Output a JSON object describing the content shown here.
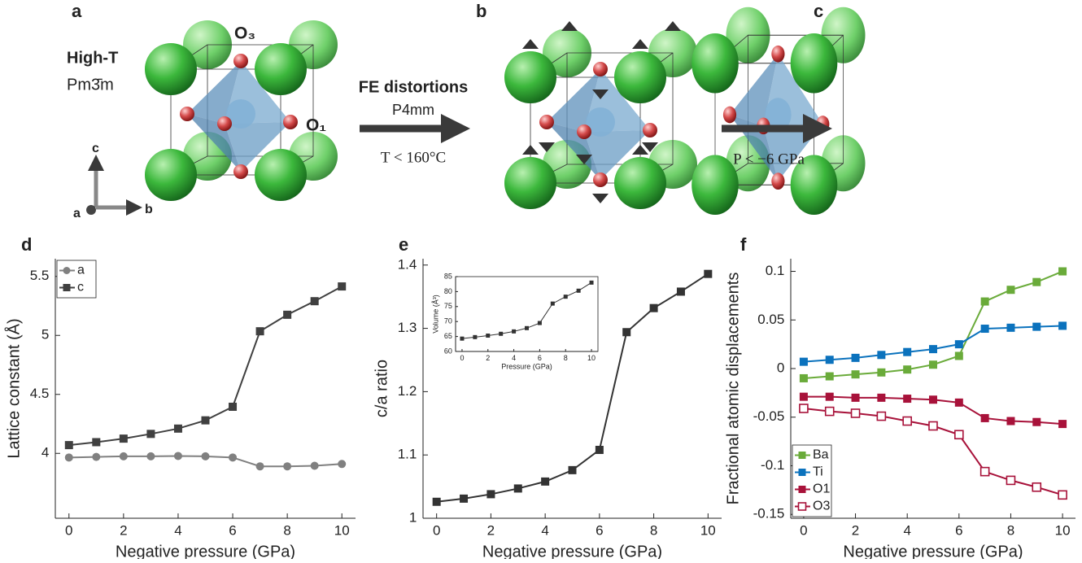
{
  "diagram": {
    "panel_a": "a",
    "panel_b": "b",
    "panel_c": "c",
    "phase_label": "High-T",
    "space_group_a": "Pm3̄m",
    "o3_label": "O₃",
    "o1_label": "O₁",
    "axis_c": "c",
    "axis_a": "a",
    "axis_b": "b",
    "arrow1_top": "FE distortions",
    "arrow1_group": "P4mm",
    "arrow1_condition": "T < 160°C",
    "arrow2_condition": "P < −6 GPa"
  },
  "chart_data": [
    {
      "type": "line",
      "label": "d",
      "xlabel": "Negative pressure (GPa)",
      "ylabel": "Lattice constant (Å)",
      "x": [
        0,
        1,
        2,
        3,
        4,
        5,
        6,
        7,
        8,
        9,
        10
      ],
      "series": [
        {
          "name": "a",
          "color": "#808080",
          "marker": "circle",
          "values": [
            3.965,
            3.97,
            3.975,
            3.975,
            3.978,
            3.975,
            3.965,
            3.89,
            3.89,
            3.895,
            3.91
          ]
        },
        {
          "name": "c",
          "color": "#404040",
          "marker": "square",
          "values": [
            4.07,
            4.095,
            4.125,
            4.165,
            4.21,
            4.28,
            4.395,
            5.035,
            5.175,
            5.29,
            5.415
          ]
        }
      ],
      "xlim": [
        -0.5,
        10.5
      ],
      "ylim": [
        3.45,
        5.65
      ],
      "xticks": [
        0,
        2,
        4,
        6,
        8,
        10
      ],
      "yticks": [
        4,
        4.5,
        5,
        5.5
      ],
      "legend": "upper-left"
    },
    {
      "type": "line",
      "label": "e",
      "xlabel": "Negative pressure (GPa)",
      "ylabel": "c/a ratio",
      "x": [
        0,
        1,
        2,
        3,
        4,
        5,
        6,
        7,
        8,
        9,
        10
      ],
      "series": [
        {
          "color": "#333333",
          "marker": "square",
          "values": [
            1.026,
            1.031,
            1.038,
            1.047,
            1.058,
            1.076,
            1.108,
            1.294,
            1.332,
            1.358,
            1.386
          ]
        }
      ],
      "xlim": [
        -0.5,
        10.5
      ],
      "ylim": [
        1.0,
        1.41
      ],
      "xticks": [
        0,
        2,
        4,
        6,
        8,
        10
      ],
      "yticks": [
        1,
        1.1,
        1.2,
        1.3,
        1.4
      ]
    },
    {
      "type": "line",
      "xlabel": "Pressure (GPa)",
      "ylabel": "Volume (Å³)",
      "x": [
        0,
        1,
        2,
        3,
        4,
        5,
        6,
        7,
        8,
        9,
        10
      ],
      "series": [
        {
          "color": "#333333",
          "marker": "square",
          "values": [
            64.3,
            64.8,
            65.3,
            65.9,
            66.7,
            67.8,
            69.5,
            76,
            78.3,
            80.3,
            83
          ]
        }
      ],
      "xlim": [
        -0.5,
        10.5
      ],
      "ylim": [
        60,
        85
      ],
      "xticks": [
        0,
        2,
        4,
        6,
        8,
        10
      ],
      "yticks": [
        60,
        65,
        70,
        75,
        80,
        85
      ]
    },
    {
      "type": "line",
      "label": "f",
      "xlabel": "Negative pressure (GPa)",
      "ylabel": "Fractional atomic displacements",
      "x": [
        0,
        1,
        2,
        3,
        4,
        5,
        6,
        7,
        8,
        9,
        10
      ],
      "series": [
        {
          "name": "Ba",
          "color": "#6aab3a",
          "marker": "square",
          "values": [
            -0.01,
            -0.008,
            -0.006,
            -0.004,
            -0.001,
            0.004,
            0.013,
            0.069,
            0.081,
            0.089,
            0.1
          ]
        },
        {
          "name": "Ti",
          "color": "#0b72bd",
          "marker": "square",
          "values": [
            0.007,
            0.009,
            0.011,
            0.014,
            0.017,
            0.02,
            0.025,
            0.041,
            0.042,
            0.043,
            0.044
          ]
        },
        {
          "name": "O1",
          "color": "#a8123a",
          "marker": "square",
          "values": [
            -0.029,
            -0.029,
            -0.03,
            -0.03,
            -0.031,
            -0.032,
            -0.035,
            -0.051,
            -0.054,
            -0.055,
            -0.057
          ]
        },
        {
          "name": "O3",
          "color": "#a8123a",
          "marker": "square-open",
          "values": [
            -0.041,
            -0.044,
            -0.046,
            -0.049,
            -0.054,
            -0.059,
            -0.068,
            -0.106,
            -0.115,
            -0.122,
            -0.13
          ]
        }
      ],
      "xlim": [
        -0.5,
        10.5
      ],
      "ylim": [
        -0.154,
        0.113
      ],
      "xticks": [
        0,
        2,
        4,
        6,
        8,
        10
      ],
      "yticks": [
        -0.15,
        -0.1,
        -0.05,
        0,
        0.05,
        0.1
      ],
      "legend": "lower-left"
    }
  ]
}
